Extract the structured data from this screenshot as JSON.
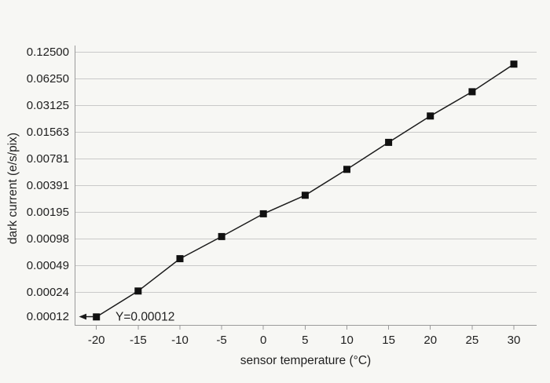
{
  "chart_data": {
    "type": "line",
    "title": "",
    "xlabel": "sensor temperature (°C)",
    "ylabel": "dark current (e/s/pix)",
    "x_ticks": [
      -20,
      -15,
      -10,
      -5,
      0,
      5,
      10,
      15,
      20,
      25,
      30
    ],
    "x_tick_labels": [
      "-20",
      "-15",
      "-10",
      "-5",
      "0",
      "5",
      "10",
      "15",
      "20",
      "25",
      "30"
    ],
    "y_scale": "log2",
    "y_tick_labels": [
      "0.12500",
      "0.06250",
      "0.03125",
      "0.01563",
      "0.00781",
      "0.00391",
      "0.00195",
      "0.00098",
      "0.00049",
      "0.00024",
      "0.00012"
    ],
    "y_tick_values": [
      0.125,
      0.0625,
      0.03125,
      0.015625,
      0.0078125,
      0.00390625,
      0.001953125,
      0.0009765625,
      0.00048828,
      0.00024414,
      0.00012207
    ],
    "ylim": [
      0.00012,
      0.125
    ],
    "xlim": [
      -22.5,
      32.5
    ],
    "grid": "horizontal-only",
    "legend": "none",
    "marker": "square",
    "series": [
      {
        "name": "dark current",
        "x": [
          -20,
          -15,
          -10,
          -5,
          0,
          5,
          10,
          15,
          20,
          25,
          30
        ],
        "y": [
          0.00012,
          0.00025,
          0.00058,
          0.00103,
          0.00186,
          0.00301,
          0.0059,
          0.0119,
          0.0236,
          0.0443,
          0.0908
        ]
      }
    ],
    "annotation": {
      "text": "Y=0.00012",
      "at_x": -20,
      "at_y": 0.00012,
      "arrow_direction": "left"
    },
    "colors": {
      "background": "#f7f7f4",
      "grid": "#c9c9c9",
      "axis": "#9b9b9b",
      "line": "#1a1a1a",
      "marker": "#111111",
      "text": "#1f1f1f"
    }
  }
}
